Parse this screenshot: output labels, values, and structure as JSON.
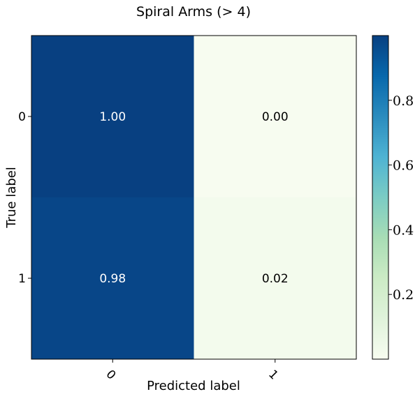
{
  "chart_data": {
    "type": "heatmap",
    "title": "Spiral Arms (> 4)",
    "xlabel": "Predicted label",
    "ylabel": "True label",
    "x_categories": [
      "0",
      "1"
    ],
    "y_categories": [
      "0",
      "1"
    ],
    "values": [
      [
        1.0,
        0.0
      ],
      [
        0.98,
        0.02
      ]
    ],
    "cell_labels": [
      [
        "1.00",
        "0.00"
      ],
      [
        "0.98",
        "0.02"
      ]
    ],
    "colormap": "GnBu",
    "colorbar": {
      "range": [
        0.0,
        1.0
      ],
      "ticks": [
        0.2,
        0.4,
        0.6,
        0.8
      ],
      "tick_labels": [
        "0.2",
        "0.4",
        "0.6",
        "0.8"
      ]
    },
    "text_colors": {
      "on_dark": "#ffffff",
      "on_light": "#000000"
    }
  }
}
